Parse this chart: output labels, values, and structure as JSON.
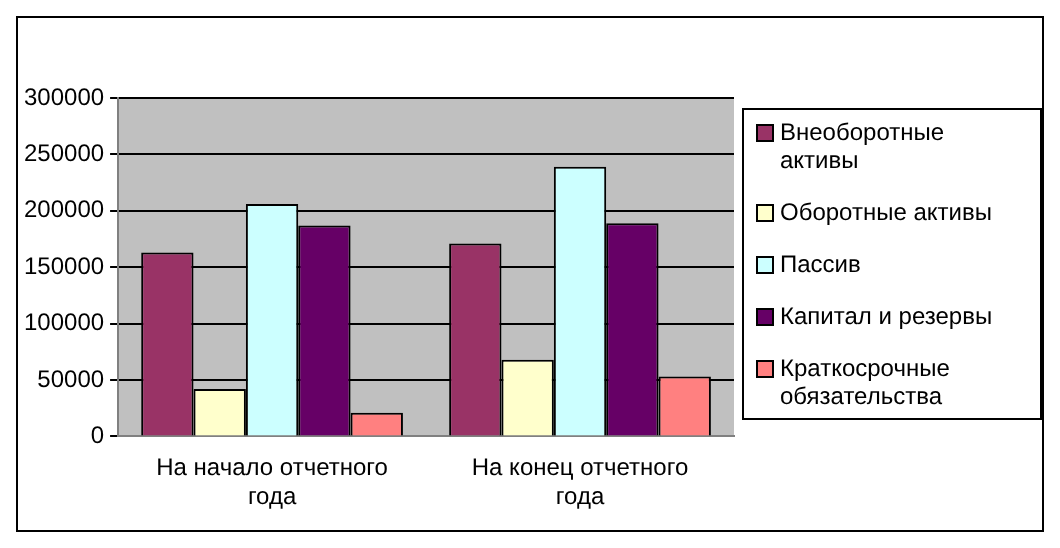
{
  "chart_data": {
    "type": "bar",
    "categories": [
      "На начало отчетного года",
      "На конец отчетного года"
    ],
    "series": [
      {
        "name": "Внеоборотные активы",
        "color": "#993366",
        "values": [
          163000,
          171000
        ]
      },
      {
        "name": "Оборотные активы",
        "color": "#ffffcc",
        "values": [
          42000,
          68000
        ]
      },
      {
        "name": "Пассив",
        "color": "#ccffff",
        "values": [
          206000,
          239000
        ]
      },
      {
        "name": "Капитал и резервы",
        "color": "#660066",
        "values": [
          187000,
          189000
        ]
      },
      {
        "name": "Краткосрочные обязательства",
        "color": "#ff8080",
        "values": [
          21000,
          53000
        ]
      }
    ],
    "ylim": [
      0,
      300000
    ],
    "yticks": [
      0,
      50000,
      100000,
      150000,
      200000,
      250000,
      300000
    ],
    "grid": "y",
    "legend": "right"
  }
}
